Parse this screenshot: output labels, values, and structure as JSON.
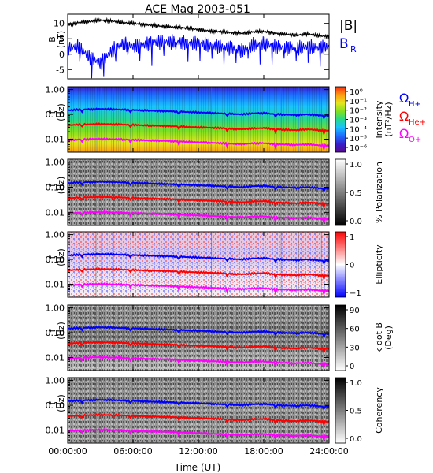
{
  "chart_data": {
    "title": "ACE Mag 2003-051",
    "xlabel": "Time (UT)",
    "x_ticks": [
      "00:00:00",
      "06:00:00",
      "12:00:00",
      "18:00:00",
      "24:00:00"
    ],
    "xlim_hours": [
      0,
      24
    ],
    "panels": [
      {
        "id": "b-field",
        "type": "line",
        "ylabel_top": "B",
        "ylabel_units": "(nT)",
        "ylim": [
          -8,
          13
        ],
        "y_ticks": [
          "10",
          "5",
          "0",
          "-5"
        ],
        "y_tick_values": [
          10,
          5,
          0,
          -5
        ],
        "legend": [
          {
            "label": "|B|",
            "color": "#000000"
          },
          {
            "label": "B",
            "sub": "R",
            "color": "#0000ff"
          }
        ],
        "series": [
          {
            "name": "|B|",
            "color": "#000000",
            "x_hours": [
              0,
              1,
              2,
              3,
              4,
              5,
              6,
              7,
              8,
              9,
              10,
              11,
              12,
              13,
              14,
              15,
              16,
              17,
              18,
              19,
              20,
              21,
              22,
              23,
              24
            ],
            "values": [
              9.5,
              10.3,
              10.6,
              11.0,
              10.8,
              10.3,
              10.0,
              9.6,
              9.3,
              9.0,
              8.7,
              8.4,
              8.0,
              7.6,
              7.3,
              7.0,
              6.8,
              7.3,
              7.4,
              6.8,
              6.5,
              6.2,
              6.6,
              6.0,
              5.7
            ]
          },
          {
            "name": "BR",
            "color": "#0000ff",
            "x_hours": [
              0,
              1,
              2,
              3,
              4,
              5,
              6,
              7,
              8,
              9,
              10,
              11,
              12,
              13,
              14,
              15,
              16,
              17,
              18,
              19,
              20,
              21,
              22,
              23,
              24
            ],
            "values": [
              2.0,
              2.5,
              -1.0,
              -3.0,
              1.0,
              3.5,
              2.5,
              3.0,
              4.0,
              4.0,
              4.0,
              3.5,
              3.5,
              3.0,
              2.5,
              2.0,
              1.0,
              3.0,
              3.5,
              2.5,
              2.0,
              2.0,
              2.5,
              2.0,
              2.5
            ]
          }
        ]
      },
      {
        "id": "intensity",
        "type": "heatmap",
        "ylabel_top": "f",
        "ylabel_units": "(Hz)",
        "y_scale": "log",
        "ylim": [
          0.003,
          1.3
        ],
        "y_ticks": [
          "1.00",
          "0.10",
          "0.01"
        ],
        "colorbar": {
          "label": "Intensity",
          "units": "(nT²/Hz)",
          "scale": "log",
          "ticks": [
            "10⁰",
            "10⁻¹",
            "10⁻²",
            "10⁻³",
            "10⁻⁴",
            "10⁻⁵",
            "10⁻⁶"
          ],
          "colors": [
            "#5a0a8a",
            "#3a1ec8",
            "#1e6cff",
            "#19c3ff",
            "#25d890",
            "#7ee020",
            "#e6e61e",
            "#ff9a10",
            "#ff2a10"
          ]
        }
      },
      {
        "id": "polarization",
        "type": "heatmap",
        "ylabel_top": "f",
        "ylabel_units": "(Hz)",
        "y_scale": "log",
        "y_ticks": [
          "1.00",
          "0.10",
          "0.01"
        ],
        "colorbar": {
          "label": "% Polarization",
          "ticks": [
            "1.0",
            "0.5",
            "0.0"
          ],
          "colors": [
            "#ffffff",
            "#000000"
          ]
        }
      },
      {
        "id": "ellipticity",
        "type": "heatmap",
        "ylabel_top": "f",
        "ylabel_units": "(Hz)",
        "y_scale": "log",
        "y_ticks": [
          "1.00",
          "0.10",
          "0.01"
        ],
        "colorbar": {
          "label": "Ellipticity",
          "ticks": [
            "1",
            "0",
            "−1"
          ],
          "colors": [
            "#ff0000",
            "#ffffff",
            "#0000ff"
          ]
        }
      },
      {
        "id": "k-dot-b",
        "type": "heatmap",
        "ylabel_top": "f",
        "ylabel_units": "(Hz)",
        "y_scale": "log",
        "y_ticks": [
          "1.00",
          "0.10",
          "0.01"
        ],
        "colorbar": {
          "label": "k dot B",
          "units": "(Deg)",
          "ticks": [
            "90",
            "60",
            "30",
            "0"
          ],
          "colors": [
            "#000000",
            "#ffffff"
          ]
        }
      },
      {
        "id": "coherency",
        "type": "heatmap",
        "ylabel_top": "f",
        "ylabel_units": "(Hz)",
        "y_scale": "log",
        "y_ticks": [
          "1.00",
          "0.10",
          "0.01"
        ],
        "colorbar": {
          "label": "Coherency",
          "ticks": [
            "1.0",
            "0.5",
            "0.0"
          ],
          "colors": [
            "#000000",
            "#ffffff"
          ]
        }
      }
    ],
    "gyrofrequency_lines": {
      "legend": [
        {
          "label": "Ω",
          "sub": "H+",
          "color": "#0000ff"
        },
        {
          "label": "Ω",
          "sub": "He+",
          "color": "#ff0000"
        },
        {
          "label": "Ω",
          "sub": "O+",
          "color": "#ff00ff"
        }
      ],
      "x_hours": [
        0,
        1,
        2,
        3,
        4,
        5,
        6,
        7,
        8,
        9,
        10,
        11,
        12,
        13,
        14,
        15,
        16,
        17,
        18,
        19,
        20,
        21,
        22,
        23,
        24
      ],
      "series": [
        {
          "name": "ΩH+",
          "color": "#0000ff",
          "values_hz": [
            0.145,
            0.155,
            0.16,
            0.165,
            0.162,
            0.155,
            0.15,
            0.145,
            0.14,
            0.135,
            0.13,
            0.125,
            0.12,
            0.115,
            0.11,
            0.105,
            0.1,
            0.11,
            0.112,
            0.102,
            0.098,
            0.094,
            0.1,
            0.092,
            0.088
          ]
        },
        {
          "name": "ΩHe+",
          "color": "#ff0000",
          "values_hz": [
            0.036,
            0.039,
            0.04,
            0.041,
            0.04,
            0.039,
            0.038,
            0.036,
            0.035,
            0.034,
            0.033,
            0.031,
            0.03,
            0.029,
            0.028,
            0.026,
            0.025,
            0.027,
            0.028,
            0.025,
            0.024,
            0.023,
            0.025,
            0.023,
            0.022
          ]
        },
        {
          "name": "ΩO+",
          "color": "#ff00ff",
          "values_hz": [
            0.009,
            0.0097,
            0.01,
            0.0103,
            0.01,
            0.0097,
            0.0094,
            0.009,
            0.0087,
            0.0085,
            0.0082,
            0.0078,
            0.0075,
            0.0072,
            0.0069,
            0.0066,
            0.0063,
            0.0068,
            0.0069,
            0.0063,
            0.0061,
            0.0059,
            0.0062,
            0.0057,
            0.0055
          ]
        }
      ]
    }
  }
}
